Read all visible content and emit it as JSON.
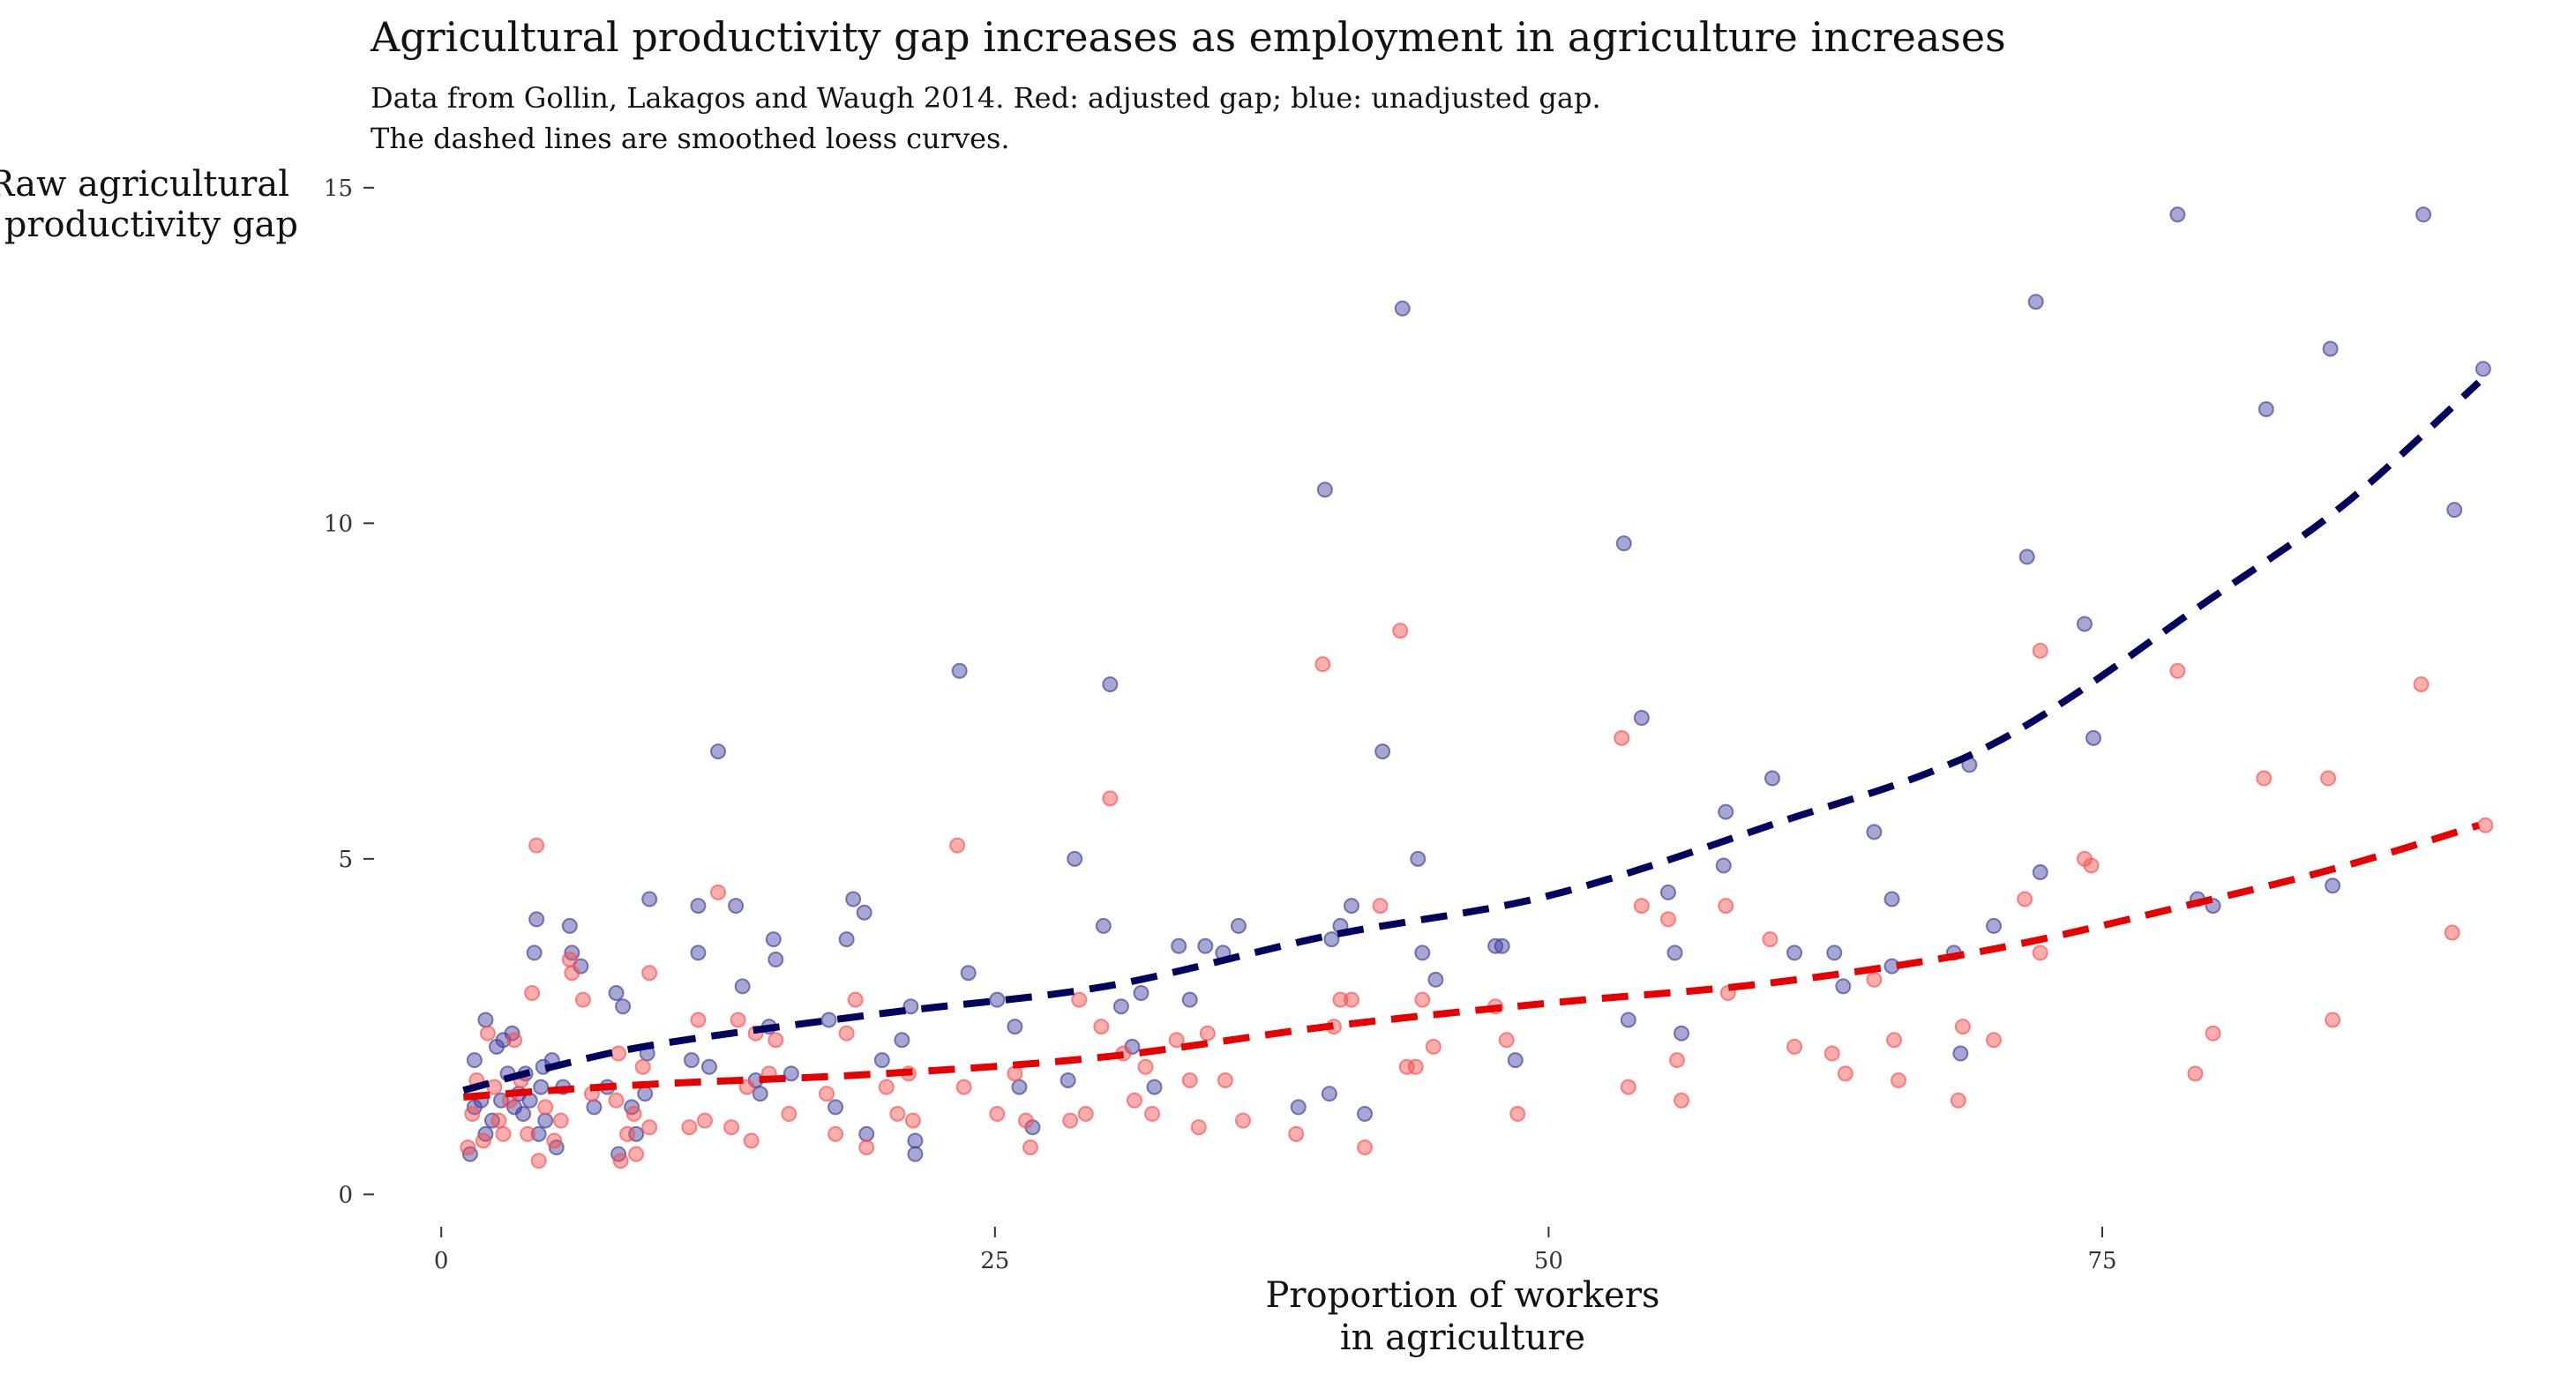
{
  "chart_data": {
    "type": "scatter",
    "title": "Agricultural productivity gap increases as employment in agriculture increases",
    "subtitle_lines": [
      "Data from Gollin, Lakagos and Waugh 2014. Red: adjusted gap; blue: unadjusted gap.",
      "The dashed lines are smoothed loess curves."
    ],
    "xlabel_lines": [
      "Proportion of workers",
      "in agriculture"
    ],
    "ylabel_lines": [
      "Raw agricultural",
      "productivity gap"
    ],
    "xlim": [
      -2,
      94
    ],
    "ylim": [
      -0.6,
      15.3
    ],
    "x_ticks": [
      0,
      25,
      50,
      75
    ],
    "y_ticks": [
      0,
      5,
      10,
      15
    ],
    "grid": false,
    "colors": {
      "unadjusted_points": "#3b3b9e",
      "adjusted_points": "#ff4c4c",
      "unadjusted_curve": "#00005f",
      "adjusted_curve": "#e80000"
    },
    "series": [
      {
        "key": "unadjusted",
        "points": [
          [
            1.3,
            0.6
          ],
          [
            1.5,
            1.3
          ],
          [
            1.5,
            2.0
          ],
          [
            1.8,
            1.4
          ],
          [
            2,
            0.9
          ],
          [
            2,
            2.6
          ],
          [
            2.3,
            1.1
          ],
          [
            2.5,
            2.2
          ],
          [
            2.7,
            1.4
          ],
          [
            2.8,
            2.3
          ],
          [
            3,
            1.8
          ],
          [
            3.2,
            2.4
          ],
          [
            3.3,
            1.3
          ],
          [
            3.5,
            1.5
          ],
          [
            3.7,
            1.2
          ],
          [
            3.8,
            1.8
          ],
          [
            4,
            1.4
          ],
          [
            4.2,
            3.6
          ],
          [
            4.3,
            4.1
          ],
          [
            4.4,
            0.9
          ],
          [
            4.5,
            1.6
          ],
          [
            4.6,
            1.9
          ],
          [
            4.7,
            1.1
          ],
          [
            5,
            2.0
          ],
          [
            5.2,
            0.7
          ],
          [
            5.5,
            1.6
          ],
          [
            5.8,
            4.0
          ],
          [
            5.9,
            3.6
          ],
          [
            6.3,
            3.4
          ],
          [
            6.9,
            1.3
          ],
          [
            7.5,
            1.6
          ],
          [
            7.9,
            3.0
          ],
          [
            8,
            0.6
          ],
          [
            8.2,
            2.8
          ],
          [
            8.6,
            1.3
          ],
          [
            8.8,
            0.9
          ],
          [
            9.2,
            1.5
          ],
          [
            9.3,
            2.1
          ],
          [
            9.4,
            4.4
          ],
          [
            11.3,
            2.0
          ],
          [
            11.6,
            4.3
          ],
          [
            11.6,
            3.6
          ],
          [
            12.1,
            1.9
          ],
          [
            12.5,
            6.6
          ],
          [
            13.3,
            4.3
          ],
          [
            13.6,
            3.1
          ],
          [
            14.2,
            1.7
          ],
          [
            14.4,
            1.5
          ],
          [
            14.8,
            2.5
          ],
          [
            15.0,
            3.8
          ],
          [
            15.1,
            3.5
          ],
          [
            15.8,
            1.8
          ],
          [
            17.5,
            2.6
          ],
          [
            17.8,
            1.3
          ],
          [
            18.3,
            3.8
          ],
          [
            18.6,
            4.4
          ],
          [
            19.1,
            4.2
          ],
          [
            19.2,
            0.9
          ],
          [
            19.9,
            2.0
          ],
          [
            20.8,
            2.3
          ],
          [
            21.2,
            2.8
          ],
          [
            21.4,
            0.8
          ],
          [
            21.4,
            0.6
          ],
          [
            23.4,
            7.8
          ],
          [
            23.8,
            3.3
          ],
          [
            25.1,
            2.9
          ],
          [
            25.9,
            2.5
          ],
          [
            26.1,
            1.6
          ],
          [
            26.7,
            1.0
          ],
          [
            28.3,
            1.7
          ],
          [
            28.6,
            5.0
          ],
          [
            29.9,
            4.0
          ],
          [
            30.2,
            7.6
          ],
          [
            30.7,
            2.8
          ],
          [
            31.2,
            2.2
          ],
          [
            31.6,
            3.0
          ],
          [
            32.2,
            1.6
          ],
          [
            33.3,
            3.7
          ],
          [
            33.8,
            2.9
          ],
          [
            34.5,
            3.7
          ],
          [
            35.3,
            3.6
          ],
          [
            36,
            4.0
          ],
          [
            38.7,
            1.3
          ],
          [
            39.9,
            10.5
          ],
          [
            40.1,
            1.5
          ],
          [
            40.2,
            3.8
          ],
          [
            40.6,
            4.0
          ],
          [
            41.1,
            4.3
          ],
          [
            41.7,
            1.2
          ],
          [
            42.5,
            6.6
          ],
          [
            43.4,
            13.2
          ],
          [
            44.1,
            5.0
          ],
          [
            44.3,
            3.6
          ],
          [
            44.9,
            3.2
          ],
          [
            47.6,
            3.7
          ],
          [
            47.9,
            3.7
          ],
          [
            48.5,
            2.0
          ],
          [
            53.4,
            9.7
          ],
          [
            53.6,
            2.6
          ],
          [
            54.2,
            7.1
          ],
          [
            55.4,
            4.5
          ],
          [
            55.7,
            3.6
          ],
          [
            56.0,
            2.4
          ],
          [
            57.9,
            4.9
          ],
          [
            58.0,
            5.7
          ],
          [
            60.1,
            6.2
          ],
          [
            61.1,
            3.6
          ],
          [
            62.9,
            3.6
          ],
          [
            63.3,
            3.1
          ],
          [
            64.7,
            5.4
          ],
          [
            65.5,
            4.4
          ],
          [
            65.5,
            3.4
          ],
          [
            68.3,
            3.6
          ],
          [
            68.6,
            2.1
          ],
          [
            69.0,
            6.4
          ],
          [
            70.1,
            4.0
          ],
          [
            71.6,
            9.5
          ],
          [
            72.0,
            13.3
          ],
          [
            72.2,
            4.8
          ],
          [
            74.2,
            8.5
          ],
          [
            74.6,
            6.8
          ],
          [
            78.4,
            14.6
          ],
          [
            79.3,
            4.4
          ],
          [
            80.0,
            4.3
          ],
          [
            82.4,
            11.7
          ],
          [
            85.3,
            12.6
          ],
          [
            85.4,
            4.6
          ],
          [
            89.5,
            14.6
          ],
          [
            90.9,
            10.2
          ],
          [
            92.2,
            12.3
          ]
        ]
      },
      {
        "key": "adjusted",
        "points": [
          [
            1.2,
            0.7
          ],
          [
            1.4,
            1.2
          ],
          [
            1.6,
            1.7
          ],
          [
            1.9,
            0.8
          ],
          [
            2.1,
            2.4
          ],
          [
            2.4,
            1.6
          ],
          [
            2.6,
            1.1
          ],
          [
            2.8,
            0.9
          ],
          [
            3.1,
            1.4
          ],
          [
            3.3,
            2.3
          ],
          [
            3.6,
            1.7
          ],
          [
            3.9,
            0.9
          ],
          [
            4.1,
            3.0
          ],
          [
            4.3,
            5.2
          ],
          [
            4.4,
            0.5
          ],
          [
            4.7,
            1.3
          ],
          [
            5.1,
            0.8
          ],
          [
            5.4,
            1.1
          ],
          [
            5.8,
            3.5
          ],
          [
            5.9,
            3.3
          ],
          [
            6.4,
            2.9
          ],
          [
            6.8,
            1.5
          ],
          [
            7.9,
            1.4
          ],
          [
            8.0,
            2.1
          ],
          [
            8.1,
            0.5
          ],
          [
            8.4,
            0.9
          ],
          [
            8.7,
            1.2
          ],
          [
            8.8,
            0.6
          ],
          [
            9.1,
            1.9
          ],
          [
            9.4,
            1.0
          ],
          [
            9.4,
            3.3
          ],
          [
            11.2,
            1.0
          ],
          [
            11.6,
            2.6
          ],
          [
            11.9,
            1.1
          ],
          [
            12.5,
            4.5
          ],
          [
            13.1,
            1.0
          ],
          [
            13.4,
            2.6
          ],
          [
            13.8,
            1.6
          ],
          [
            14.0,
            0.8
          ],
          [
            14.2,
            2.4
          ],
          [
            14.8,
            1.8
          ],
          [
            15.1,
            2.3
          ],
          [
            15.7,
            1.2
          ],
          [
            17.4,
            1.5
          ],
          [
            17.8,
            0.9
          ],
          [
            18.3,
            2.4
          ],
          [
            18.7,
            2.9
          ],
          [
            19.2,
            0.7
          ],
          [
            20.1,
            1.6
          ],
          [
            20.6,
            1.2
          ],
          [
            21.1,
            1.8
          ],
          [
            21.3,
            1.1
          ],
          [
            23.3,
            5.2
          ],
          [
            23.6,
            1.6
          ],
          [
            25.1,
            1.2
          ],
          [
            25.9,
            1.8
          ],
          [
            26.4,
            1.1
          ],
          [
            26.6,
            0.7
          ],
          [
            28.4,
            1.1
          ],
          [
            28.8,
            2.9
          ],
          [
            29.1,
            1.2
          ],
          [
            29.8,
            2.5
          ],
          [
            30.2,
            5.9
          ],
          [
            30.8,
            2.1
          ],
          [
            31.3,
            1.4
          ],
          [
            31.8,
            1.9
          ],
          [
            32.1,
            1.2
          ],
          [
            33.2,
            2.3
          ],
          [
            33.8,
            1.7
          ],
          [
            34.2,
            1.0
          ],
          [
            34.6,
            2.4
          ],
          [
            35.4,
            1.7
          ],
          [
            36.2,
            1.1
          ],
          [
            38.6,
            0.9
          ],
          [
            39.8,
            7.9
          ],
          [
            40.3,
            2.5
          ],
          [
            40.6,
            2.9
          ],
          [
            41.1,
            2.9
          ],
          [
            41.7,
            0.7
          ],
          [
            42.4,
            4.3
          ],
          [
            43.3,
            8.4
          ],
          [
            43.6,
            1.9
          ],
          [
            44.0,
            1.9
          ],
          [
            44.3,
            2.9
          ],
          [
            44.8,
            2.2
          ],
          [
            47.6,
            2.8
          ],
          [
            48.1,
            2.3
          ],
          [
            48.6,
            1.2
          ],
          [
            53.3,
            6.8
          ],
          [
            53.6,
            1.6
          ],
          [
            54.2,
            4.3
          ],
          [
            55.4,
            4.1
          ],
          [
            55.8,
            2.0
          ],
          [
            56.0,
            1.4
          ],
          [
            58.0,
            4.3
          ],
          [
            58.1,
            3.0
          ],
          [
            60.0,
            3.8
          ],
          [
            61.1,
            2.2
          ],
          [
            62.8,
            2.1
          ],
          [
            63.4,
            1.8
          ],
          [
            64.7,
            3.2
          ],
          [
            65.6,
            2.3
          ],
          [
            65.8,
            1.7
          ],
          [
            68.5,
            1.4
          ],
          [
            68.7,
            2.5
          ],
          [
            70.1,
            2.3
          ],
          [
            71.5,
            4.4
          ],
          [
            72.2,
            8.1
          ],
          [
            72.2,
            3.6
          ],
          [
            74.2,
            5.0
          ],
          [
            74.5,
            4.9
          ],
          [
            78.4,
            7.8
          ],
          [
            79.2,
            1.8
          ],
          [
            80.0,
            2.4
          ],
          [
            82.3,
            6.2
          ],
          [
            85.2,
            6.2
          ],
          [
            85.4,
            2.6
          ],
          [
            89.4,
            7.6
          ],
          [
            90.8,
            3.9
          ],
          [
            92.3,
            5.5
          ]
        ]
      }
    ],
    "smooth_curves": [
      {
        "key": "unadjusted",
        "points": [
          [
            1,
            1.55
          ],
          [
            5,
            1.9
          ],
          [
            10,
            2.25
          ],
          [
            20,
            2.7
          ],
          [
            30,
            3.1
          ],
          [
            40,
            3.85
          ],
          [
            50,
            4.45
          ],
          [
            60,
            5.5
          ],
          [
            70,
            6.7
          ],
          [
            80,
            8.9
          ],
          [
            86,
            10.3
          ],
          [
            92,
            12.1
          ]
        ]
      },
      {
        "key": "adjusted",
        "points": [
          [
            1,
            1.45
          ],
          [
            5,
            1.55
          ],
          [
            10,
            1.65
          ],
          [
            20,
            1.8
          ],
          [
            30,
            2.05
          ],
          [
            40,
            2.5
          ],
          [
            50,
            2.85
          ],
          [
            60,
            3.15
          ],
          [
            70,
            3.65
          ],
          [
            80,
            4.4
          ],
          [
            86,
            4.9
          ],
          [
            92,
            5.5
          ]
        ]
      }
    ]
  }
}
